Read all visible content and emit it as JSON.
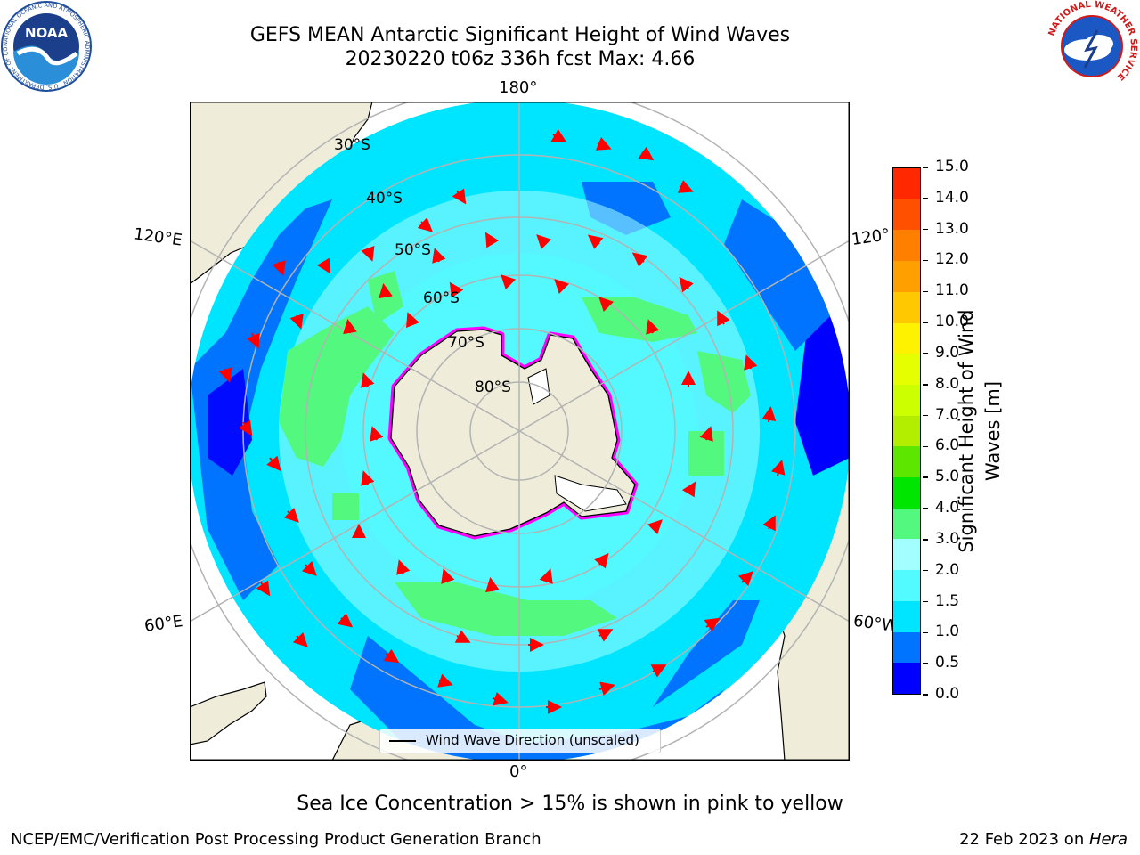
{
  "header": {
    "title": "GEFS MEAN Antarctic Significant Height of Wind Waves",
    "subtitle": "20230220 t06z 336h fcst   Max: 4.66"
  },
  "map": {
    "projection": "south-polar-stereographic",
    "longitude_labels": {
      "top": "180°",
      "bottom": "0°",
      "left_upper": "120°E",
      "left_lower": "60°E",
      "right_upper": "120°",
      "right_lower": "60°W"
    },
    "latitude_labels": [
      "30°S",
      "40°S",
      "50°S",
      "60°S",
      "70°S",
      "80°S"
    ],
    "legend": "Wind Wave Direction (unscaled)",
    "colors": {
      "land": "#efedda",
      "ocean_low": "#0000ff",
      "ocean_mid": "#00e5ff",
      "ocean_hi": "#52f97e",
      "sea_ice": "#ff00ff",
      "arrows": "#ff0000",
      "grid": "#b3b3b3"
    }
  },
  "colorbar": {
    "label": "Significant Height of Wind Waves [m]",
    "label_line1": "Significant Height of Wind",
    "label_line2": "Waves [m]",
    "ticks": [
      "15.0",
      "14.0",
      "13.0",
      "12.0",
      "11.0",
      "10.0",
      "9.0",
      "8.0",
      "7.0",
      "6.0",
      "5.0",
      "4.0",
      "3.0",
      "2.0",
      "1.5",
      "1.0",
      "0.5",
      "0.0"
    ],
    "colors": [
      "#0000ff",
      "#0073ff",
      "#00e5ff",
      "#52fbff",
      "#a3ffff",
      "#52f97e",
      "#00e600",
      "#5ce600",
      "#b3ee00",
      "#ccff00",
      "#e5ff00",
      "#fff200",
      "#ffc800",
      "#ffa000",
      "#ff8000",
      "#ff5000",
      "#ff2800"
    ]
  },
  "chart_data": {
    "type": "heatmap",
    "title": "GEFS MEAN Antarctic Significant Height of Wind Waves",
    "subtitle": "20230220 t06z 336h fcst   Max: 4.66",
    "max": 4.66,
    "colorbar_label": "Significant Height of Wind Waves [m]",
    "levels": [
      0.0,
      0.5,
      1.0,
      1.5,
      2.0,
      3.0,
      4.0,
      5.0,
      6.0,
      7.0,
      8.0,
      9.0,
      10.0,
      11.0,
      12.0,
      13.0,
      14.0,
      15.0
    ],
    "legend": [
      "Wind Wave Direction (unscaled)"
    ]
  },
  "caption": "Sea Ice Concentration > 15% is shown in pink to yellow",
  "footer": {
    "left": "NCEP/EMC/Verification Post Processing Product Generation Branch",
    "right_prefix": "22 Feb 2023 on ",
    "right_italic": "Hera"
  },
  "logos": {
    "noaa": "NOAA",
    "noaa_ring": "NATIONAL OCEANIC AND ATMOSPHERIC ADMINISTRATION · U.S. DEPARTMENT OF COMMERCE",
    "nws_ring": "NATIONAL WEATHER SERVICE"
  }
}
